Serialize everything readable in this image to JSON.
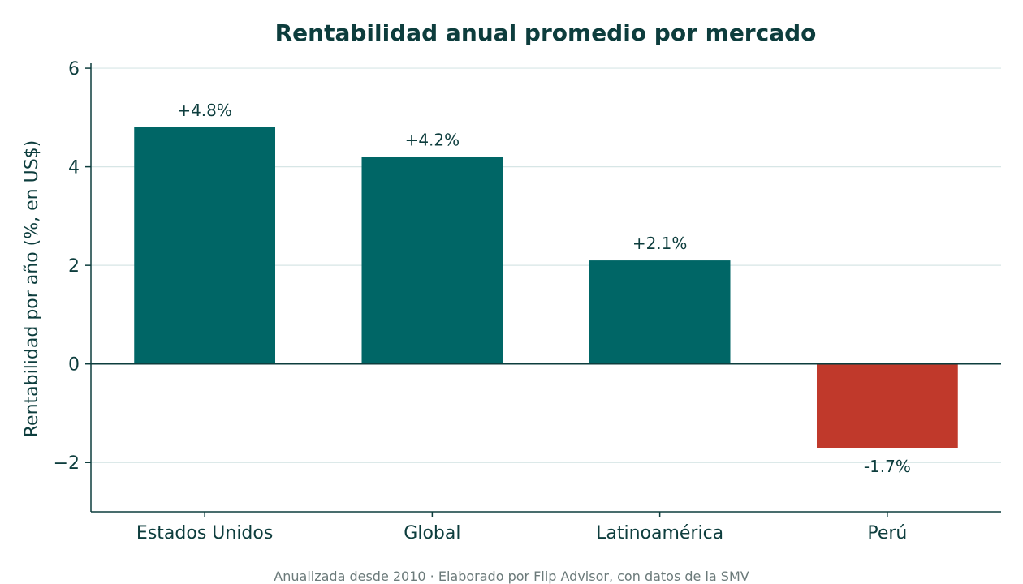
{
  "chart_data": {
    "type": "bar",
    "title": "Rentabilidad anual promedio por mercado",
    "ylabel": "Rentabilidad por año (%, en US$)",
    "xlabel": "",
    "categories": [
      "Estados Unidos",
      "Global",
      "Latinoamérica",
      "Perú"
    ],
    "values": [
      4.8,
      4.2,
      2.1,
      -1.7
    ],
    "data_labels": [
      "+4.8%",
      "+4.2%",
      "+2.1%",
      "-1.7%"
    ],
    "ylim": [
      -3,
      6.1
    ],
    "yticks": [
      -2,
      0,
      2,
      4,
      6
    ],
    "ytick_labels": [
      "−2",
      "0",
      "2",
      "4",
      "6"
    ],
    "grid": true,
    "colors": {
      "positive": "#006666",
      "negative": "#c0392b",
      "text": "#0d3d3d",
      "grid": "#d7e6e6"
    }
  },
  "footnote": "Anualizada desde 2010 · Elaborado por Flip Advisor, con datos de la SMV"
}
